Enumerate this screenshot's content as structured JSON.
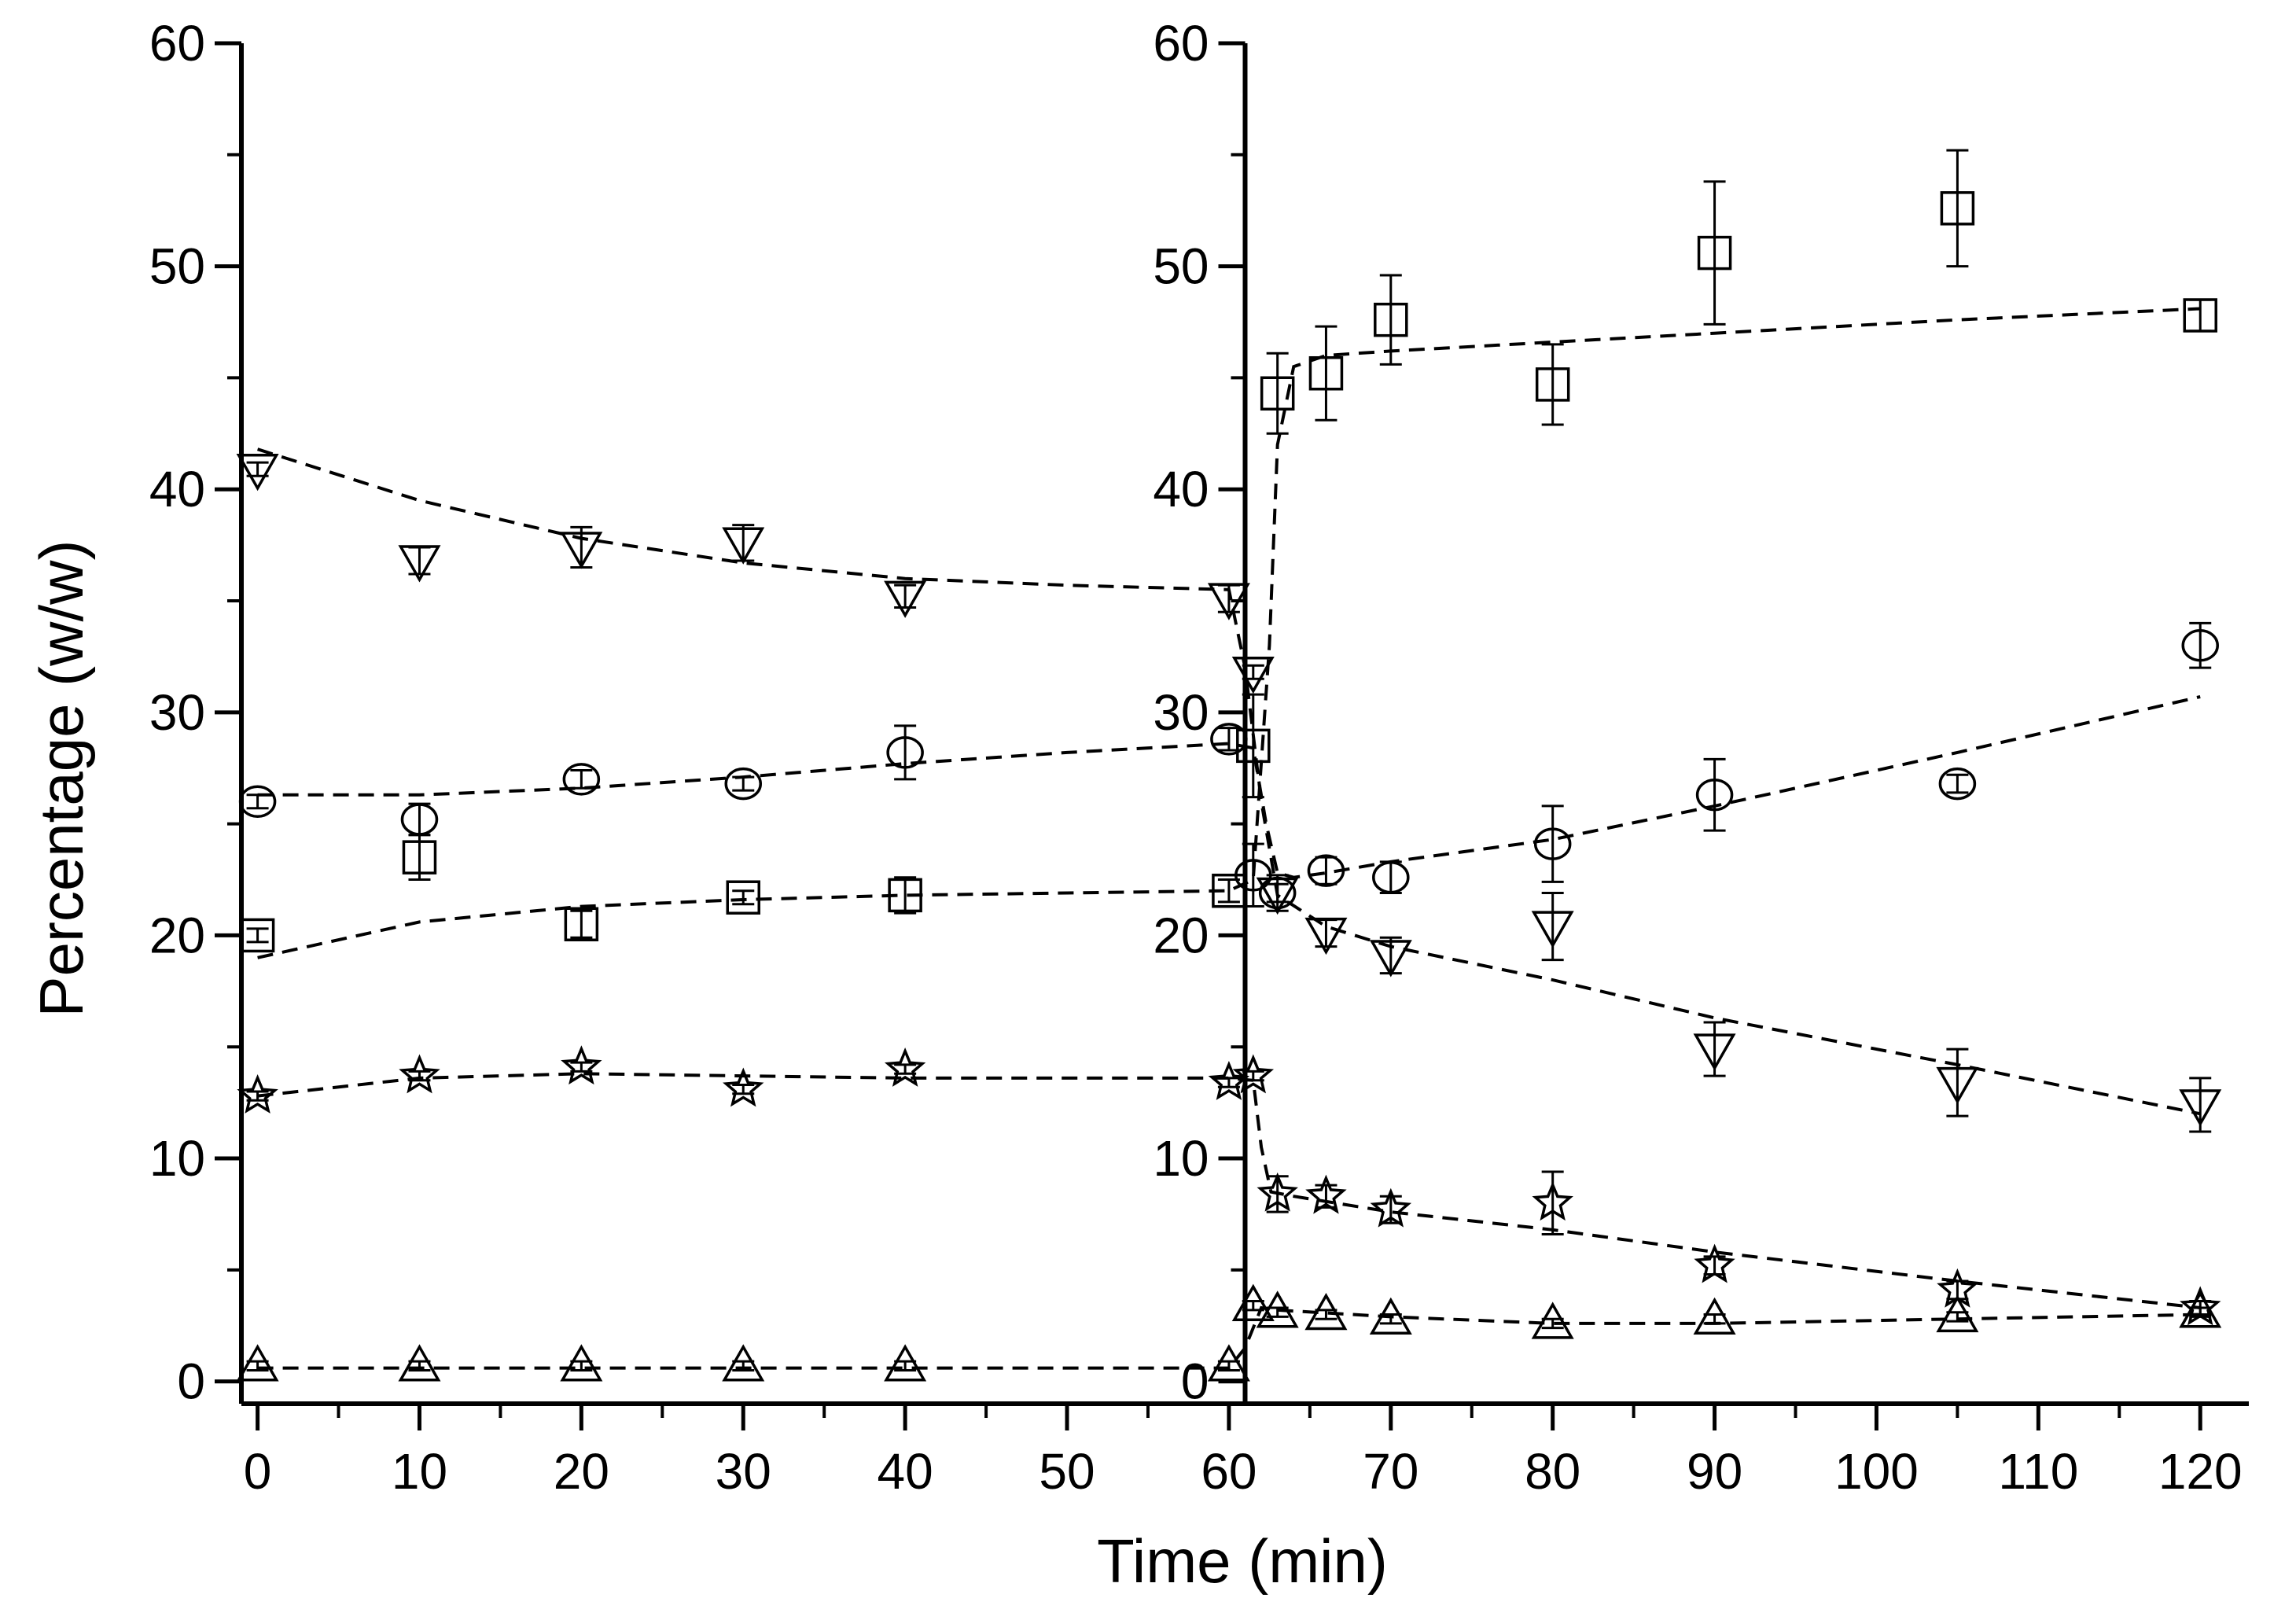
{
  "chart_data": {
    "type": "scatter",
    "title": "",
    "xlabel": "Time (min)",
    "ylabel": "Percentage (w/w)",
    "xlim": [
      -1,
      123
    ],
    "ylim": [
      -1,
      60
    ],
    "x_ticks": [
      "0",
      "10",
      "20",
      "30",
      "40",
      "50",
      "60",
      "70",
      "80",
      "90",
      "100",
      "110",
      "120"
    ],
    "y_ticks": [
      "0",
      "10",
      "20",
      "30",
      "40",
      "50",
      "60"
    ],
    "left_axis_at": -1,
    "right_axis_at": 61,
    "series": [
      {
        "name": "square",
        "marker": "square",
        "points": [
          [
            0,
            20.0,
            0.3
          ],
          [
            10,
            23.5,
            1.0
          ],
          [
            20,
            20.5,
            0.6
          ],
          [
            30,
            21.7,
            0.3
          ],
          [
            40,
            21.8,
            0.8
          ],
          [
            60,
            22.0,
            0.5
          ],
          [
            61.5,
            28.5,
            2.3
          ],
          [
            63,
            44.3,
            1.8
          ],
          [
            66,
            45.2,
            2.1
          ],
          [
            70,
            47.6,
            2.0
          ],
          [
            80,
            44.7,
            1.8
          ],
          [
            90,
            50.6,
            3.2
          ],
          [
            105,
            52.6,
            2.6
          ],
          [
            120,
            47.8,
            0.7
          ]
        ],
        "fit": [
          [
            0,
            19.0
          ],
          [
            10,
            20.6
          ],
          [
            20,
            21.3
          ],
          [
            30,
            21.6
          ],
          [
            40,
            21.8
          ],
          [
            50,
            21.9
          ],
          [
            60,
            22.0
          ],
          [
            61.5,
            22.5
          ],
          [
            62.5,
            33
          ],
          [
            63,
            42
          ],
          [
            64,
            45.5
          ],
          [
            66,
            46.0
          ],
          [
            70,
            46.2
          ],
          [
            80,
            46.6
          ],
          [
            90,
            47.0
          ],
          [
            105,
            47.6
          ],
          [
            120,
            48.1
          ]
        ]
      },
      {
        "name": "circle",
        "marker": "circle",
        "points": [
          [
            0,
            26.0,
            0.3
          ],
          [
            10,
            25.2,
            0.7
          ],
          [
            20,
            27.0,
            0.4
          ],
          [
            30,
            26.8,
            0.3
          ],
          [
            40,
            28.2,
            1.2
          ],
          [
            60,
            28.8,
            0.5
          ],
          [
            61.5,
            22.7,
            1.4
          ],
          [
            63,
            21.9,
            0.8
          ],
          [
            66,
            22.9,
            0.6
          ],
          [
            70,
            22.6,
            0.7
          ],
          [
            80,
            24.1,
            1.7
          ],
          [
            90,
            26.3,
            1.6
          ],
          [
            105,
            26.8,
            0.4
          ],
          [
            120,
            33.0,
            1.0
          ]
        ],
        "fit": [
          [
            0,
            26.3
          ],
          [
            10,
            26.3
          ],
          [
            20,
            26.6
          ],
          [
            30,
            27.1
          ],
          [
            40,
            27.7
          ],
          [
            50,
            28.2
          ],
          [
            60,
            28.6
          ],
          [
            61.5,
            28.4
          ],
          [
            62.3,
            25
          ],
          [
            63,
            22.8
          ],
          [
            64,
            22.6
          ],
          [
            66,
            22.8
          ],
          [
            70,
            23.3
          ],
          [
            80,
            24.3
          ],
          [
            90,
            25.8
          ],
          [
            105,
            28.2
          ],
          [
            120,
            30.7
          ]
        ]
      },
      {
        "name": "triangle-down",
        "marker": "triangle-down",
        "points": [
          [
            0,
            40.9,
            0.3
          ],
          [
            10,
            36.8,
            0.6
          ],
          [
            20,
            37.4,
            0.9
          ],
          [
            30,
            37.6,
            0.8
          ],
          [
            40,
            35.2,
            0.5
          ],
          [
            60,
            35.1,
            0.6
          ],
          [
            61.5,
            31.8,
            0.3
          ],
          [
            63,
            21.9,
            0.4
          ],
          [
            66,
            20.1,
            0.6
          ],
          [
            70,
            19.1,
            0.8
          ],
          [
            80,
            20.4,
            1.5
          ],
          [
            90,
            14.9,
            1.2
          ],
          [
            105,
            13.4,
            1.5
          ],
          [
            120,
            12.4,
            1.2
          ]
        ],
        "fit": [
          [
            0,
            41.8
          ],
          [
            10,
            39.5
          ],
          [
            20,
            37.8
          ],
          [
            30,
            36.7
          ],
          [
            40,
            36.0
          ],
          [
            50,
            35.7
          ],
          [
            60,
            35.5
          ],
          [
            61,
            32
          ],
          [
            62,
            26
          ],
          [
            63,
            21.8
          ],
          [
            66,
            20.4
          ],
          [
            70,
            19.5
          ],
          [
            80,
            18.0
          ],
          [
            90,
            16.3
          ],
          [
            105,
            14.2
          ],
          [
            120,
            12.0
          ]
        ]
      },
      {
        "name": "triangle-up",
        "marker": "triangle-up",
        "points": [
          [
            0,
            0.7,
            0.2
          ],
          [
            10,
            0.7,
            0.2
          ],
          [
            20,
            0.7,
            0.2
          ],
          [
            30,
            0.7,
            0.2
          ],
          [
            40,
            0.7,
            0.2
          ],
          [
            60,
            0.7,
            0.2
          ],
          [
            61.5,
            3.4,
            0.2
          ],
          [
            63,
            3.1,
            0.2
          ],
          [
            66,
            3.0,
            0.2
          ],
          [
            70,
            2.8,
            0.2
          ],
          [
            80,
            2.6,
            0.2
          ],
          [
            90,
            2.8,
            0.2
          ],
          [
            105,
            2.9,
            0.2
          ],
          [
            120,
            3.1,
            0.2
          ]
        ],
        "fit": [
          [
            0,
            0.6
          ],
          [
            20,
            0.6
          ],
          [
            40,
            0.6
          ],
          [
            60,
            0.6
          ],
          [
            61,
            1.5
          ],
          [
            62,
            3.3
          ],
          [
            63,
            3.2
          ],
          [
            70,
            2.9
          ],
          [
            80,
            2.6
          ],
          [
            90,
            2.6
          ],
          [
            105,
            2.8
          ],
          [
            120,
            3.0
          ]
        ]
      },
      {
        "name": "star",
        "marker": "star",
        "points": [
          [
            0,
            12.8,
            0.2
          ],
          [
            10,
            13.7,
            0.2
          ],
          [
            20,
            14.1,
            0.2
          ],
          [
            30,
            13.1,
            0.2
          ],
          [
            40,
            14.0,
            0.2
          ],
          [
            60,
            13.4,
            0.2
          ],
          [
            61.5,
            13.7,
            0.2
          ],
          [
            63,
            8.4,
            0.8
          ],
          [
            66,
            8.3,
            0.5
          ],
          [
            70,
            7.7,
            0.6
          ],
          [
            80,
            8.0,
            1.4
          ],
          [
            90,
            5.2,
            0.4
          ],
          [
            105,
            4.1,
            0.4
          ],
          [
            120,
            3.3,
            0.3
          ]
        ],
        "fit": [
          [
            0,
            12.8
          ],
          [
            10,
            13.6
          ],
          [
            20,
            13.8
          ],
          [
            30,
            13.7
          ],
          [
            40,
            13.6
          ],
          [
            50,
            13.6
          ],
          [
            60,
            13.6
          ],
          [
            61.5,
            13.5
          ],
          [
            62,
            10.5
          ],
          [
            62.6,
            8.5
          ],
          [
            64,
            8.3
          ],
          [
            70,
            7.6
          ],
          [
            80,
            6.8
          ],
          [
            90,
            5.8
          ],
          [
            105,
            4.5
          ],
          [
            120,
            3.3
          ]
        ]
      }
    ]
  }
}
